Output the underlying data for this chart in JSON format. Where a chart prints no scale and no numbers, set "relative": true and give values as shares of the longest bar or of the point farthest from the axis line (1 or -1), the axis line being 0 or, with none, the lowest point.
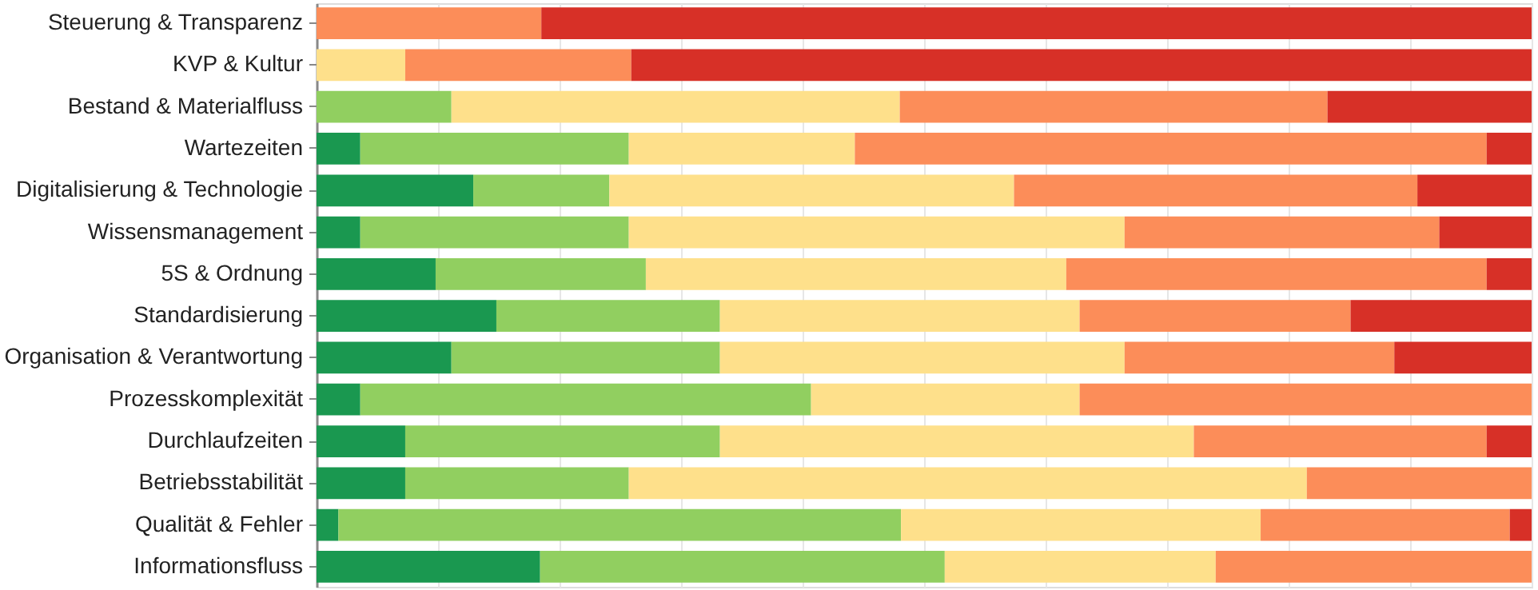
{
  "chart_data": {
    "type": "bar",
    "orientation": "horizontal",
    "stacked": true,
    "relative": true,
    "grid": "x",
    "legend": false,
    "categories": [
      "Steuerung & Transparenz",
      "KVP & Kultur",
      "Bestand & Materialfluss",
      "Wartezeiten",
      "Digitalisierung & Technologie",
      "Wissensmanagement",
      "5S & Ordnung",
      "Standardisierung",
      "Organisation & Verantwortung",
      "Prozesskomplexität",
      "Durchlaufzeiten",
      "Betriebsstabilität",
      "Qualität & Fehler",
      "Informationsfluss"
    ],
    "series": [
      {
        "color": "#1a9850",
        "values": [
          0,
          0,
          0,
          0.036,
          0.129,
          0.036,
          0.098,
          0.148,
          0.111,
          0.036,
          0.073,
          0.073,
          0.018,
          0.184
        ]
      },
      {
        "color": "#91cf60",
        "values": [
          0,
          0,
          0.111,
          0.221,
          0.112,
          0.221,
          0.173,
          0.184,
          0.221,
          0.371,
          0.259,
          0.184,
          0.463,
          0.333
        ]
      },
      {
        "color": "#fee08b",
        "values": [
          0,
          0.073,
          0.369,
          0.186,
          0.333,
          0.408,
          0.346,
          0.296,
          0.333,
          0.221,
          0.39,
          0.558,
          0.296,
          0.223
        ]
      },
      {
        "color": "#fc8d59",
        "values": [
          0.185,
          0.186,
          0.352,
          0.52,
          0.332,
          0.259,
          0.346,
          0.223,
          0.222,
          0.372,
          0.241,
          0.185,
          0.205,
          0.26
        ]
      },
      {
        "color": "#d73027",
        "values": [
          0.815,
          0.741,
          0.168,
          0.037,
          0.094,
          0.076,
          0.037,
          0.149,
          0.113,
          0,
          0.037,
          0,
          0.018,
          0
        ]
      }
    ]
  }
}
